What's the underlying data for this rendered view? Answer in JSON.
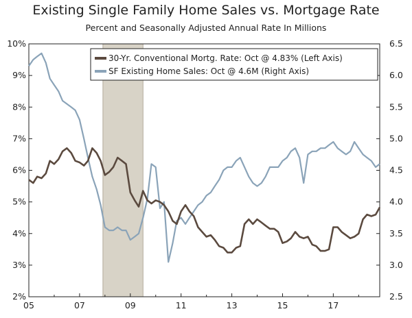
{
  "chart_data": {
    "type": "line",
    "title": "Existing Single Family Home Sales vs. Mortgage Rate",
    "subtitle": "Percent and Seasonally Adjusted Annual Rate In Millions",
    "x_labels": [
      "05",
      "07",
      "09",
      "11",
      "13",
      "15",
      "17"
    ],
    "x_label_years": [
      2005,
      2007,
      2009,
      2011,
      2013,
      2015,
      2017
    ],
    "xlim": [
      2005.0,
      2018.83
    ],
    "left_axis": {
      "ylim": [
        2,
        10
      ],
      "ticks": [
        2,
        3,
        4,
        5,
        6,
        7,
        8,
        9,
        10
      ],
      "tick_labels": [
        "2%",
        "3%",
        "4%",
        "5%",
        "6%",
        "7%",
        "8%",
        "9%",
        "10%"
      ]
    },
    "right_axis": {
      "ylim": [
        2.5,
        6.5
      ],
      "ticks": [
        2.5,
        3.0,
        3.5,
        4.0,
        4.5,
        5.0,
        5.5,
        6.0,
        6.5
      ],
      "tick_labels": [
        "2.5",
        "3.0",
        "3.5",
        "4.0",
        "4.5",
        "5.0",
        "5.5",
        "6.0",
        "6.5"
      ]
    },
    "recession": {
      "start": 2007.92,
      "end": 2009.5
    },
    "series": [
      {
        "name": "30-Yr. Conventional Mortg. Rate: Oct @ 4.83% (Left Axis)",
        "axis": "left",
        "color": "#5b4a3f",
        "points": [
          [
            2005.0,
            5.7
          ],
          [
            2005.17,
            5.6
          ],
          [
            2005.33,
            5.8
          ],
          [
            2005.5,
            5.75
          ],
          [
            2005.67,
            5.9
          ],
          [
            2005.83,
            6.3
          ],
          [
            2006.0,
            6.2
          ],
          [
            2006.17,
            6.35
          ],
          [
            2006.33,
            6.6
          ],
          [
            2006.5,
            6.7
          ],
          [
            2006.67,
            6.55
          ],
          [
            2006.83,
            6.3
          ],
          [
            2007.0,
            6.25
          ],
          [
            2007.17,
            6.15
          ],
          [
            2007.33,
            6.3
          ],
          [
            2007.5,
            6.7
          ],
          [
            2007.67,
            6.55
          ],
          [
            2007.83,
            6.3
          ],
          [
            2008.0,
            5.85
          ],
          [
            2008.17,
            5.95
          ],
          [
            2008.33,
            6.1
          ],
          [
            2008.5,
            6.4
          ],
          [
            2008.67,
            6.3
          ],
          [
            2008.83,
            6.2
          ],
          [
            2009.0,
            5.3
          ],
          [
            2009.17,
            5.05
          ],
          [
            2009.33,
            4.85
          ],
          [
            2009.5,
            5.35
          ],
          [
            2009.67,
            5.05
          ],
          [
            2009.83,
            4.95
          ],
          [
            2010.0,
            5.05
          ],
          [
            2010.17,
            5.0
          ],
          [
            2010.33,
            4.9
          ],
          [
            2010.5,
            4.7
          ],
          [
            2010.67,
            4.4
          ],
          [
            2010.83,
            4.3
          ],
          [
            2011.0,
            4.7
          ],
          [
            2011.17,
            4.9
          ],
          [
            2011.33,
            4.7
          ],
          [
            2011.5,
            4.55
          ],
          [
            2011.67,
            4.2
          ],
          [
            2011.83,
            4.05
          ],
          [
            2012.0,
            3.9
          ],
          [
            2012.17,
            3.95
          ],
          [
            2012.33,
            3.8
          ],
          [
            2012.5,
            3.6
          ],
          [
            2012.67,
            3.55
          ],
          [
            2012.83,
            3.4
          ],
          [
            2013.0,
            3.4
          ],
          [
            2013.17,
            3.55
          ],
          [
            2013.33,
            3.6
          ],
          [
            2013.5,
            4.3
          ],
          [
            2013.67,
            4.45
          ],
          [
            2013.83,
            4.3
          ],
          [
            2014.0,
            4.45
          ],
          [
            2014.17,
            4.35
          ],
          [
            2014.33,
            4.25
          ],
          [
            2014.5,
            4.15
          ],
          [
            2014.67,
            4.15
          ],
          [
            2014.83,
            4.05
          ],
          [
            2015.0,
            3.7
          ],
          [
            2015.17,
            3.75
          ],
          [
            2015.33,
            3.85
          ],
          [
            2015.5,
            4.05
          ],
          [
            2015.67,
            3.9
          ],
          [
            2015.83,
            3.85
          ],
          [
            2016.0,
            3.9
          ],
          [
            2016.17,
            3.65
          ],
          [
            2016.33,
            3.6
          ],
          [
            2016.5,
            3.45
          ],
          [
            2016.67,
            3.45
          ],
          [
            2016.83,
            3.5
          ],
          [
            2017.0,
            4.2
          ],
          [
            2017.17,
            4.2
          ],
          [
            2017.33,
            4.05
          ],
          [
            2017.5,
            3.95
          ],
          [
            2017.67,
            3.85
          ],
          [
            2017.83,
            3.9
          ],
          [
            2018.0,
            4.0
          ],
          [
            2018.17,
            4.45
          ],
          [
            2018.33,
            4.6
          ],
          [
            2018.5,
            4.55
          ],
          [
            2018.67,
            4.6
          ],
          [
            2018.83,
            4.83
          ]
        ]
      },
      {
        "name": "SF Existing Home Sales: Oct @ 4.6M (Right Axis)",
        "axis": "right",
        "color": "#8aa3b8",
        "points": [
          [
            2005.0,
            6.15
          ],
          [
            2005.17,
            6.25
          ],
          [
            2005.33,
            6.3
          ],
          [
            2005.5,
            6.35
          ],
          [
            2005.67,
            6.2
          ],
          [
            2005.83,
            5.95
          ],
          [
            2006.0,
            5.85
          ],
          [
            2006.17,
            5.75
          ],
          [
            2006.33,
            5.6
          ],
          [
            2006.5,
            5.55
          ],
          [
            2006.67,
            5.5
          ],
          [
            2006.83,
            5.45
          ],
          [
            2007.0,
            5.3
          ],
          [
            2007.17,
            5.0
          ],
          [
            2007.33,
            4.7
          ],
          [
            2007.5,
            4.4
          ],
          [
            2007.67,
            4.2
          ],
          [
            2007.83,
            3.95
          ],
          [
            2008.0,
            3.6
          ],
          [
            2008.17,
            3.55
          ],
          [
            2008.33,
            3.55
          ],
          [
            2008.5,
            3.6
          ],
          [
            2008.67,
            3.55
          ],
          [
            2008.83,
            3.55
          ],
          [
            2009.0,
            3.4
          ],
          [
            2009.17,
            3.45
          ],
          [
            2009.33,
            3.5
          ],
          [
            2009.5,
            3.75
          ],
          [
            2009.67,
            4.05
          ],
          [
            2009.83,
            4.6
          ],
          [
            2010.0,
            4.55
          ],
          [
            2010.17,
            3.9
          ],
          [
            2010.33,
            4.0
          ],
          [
            2010.5,
            3.05
          ],
          [
            2010.67,
            3.35
          ],
          [
            2010.83,
            3.7
          ],
          [
            2011.0,
            3.75
          ],
          [
            2011.17,
            3.65
          ],
          [
            2011.33,
            3.75
          ],
          [
            2011.5,
            3.85
          ],
          [
            2011.67,
            3.95
          ],
          [
            2011.83,
            4.0
          ],
          [
            2012.0,
            4.1
          ],
          [
            2012.17,
            4.15
          ],
          [
            2012.33,
            4.25
          ],
          [
            2012.5,
            4.35
          ],
          [
            2012.67,
            4.5
          ],
          [
            2012.83,
            4.55
          ],
          [
            2013.0,
            4.55
          ],
          [
            2013.17,
            4.65
          ],
          [
            2013.33,
            4.7
          ],
          [
            2013.5,
            4.55
          ],
          [
            2013.67,
            4.4
          ],
          [
            2013.83,
            4.3
          ],
          [
            2014.0,
            4.25
          ],
          [
            2014.17,
            4.3
          ],
          [
            2014.33,
            4.4
          ],
          [
            2014.5,
            4.55
          ],
          [
            2014.67,
            4.55
          ],
          [
            2014.83,
            4.55
          ],
          [
            2015.0,
            4.65
          ],
          [
            2015.17,
            4.7
          ],
          [
            2015.33,
            4.8
          ],
          [
            2015.5,
            4.85
          ],
          [
            2015.67,
            4.7
          ],
          [
            2015.83,
            4.3
          ],
          [
            2016.0,
            4.75
          ],
          [
            2016.17,
            4.8
          ],
          [
            2016.33,
            4.8
          ],
          [
            2016.5,
            4.85
          ],
          [
            2016.67,
            4.85
          ],
          [
            2016.83,
            4.9
          ],
          [
            2017.0,
            4.95
          ],
          [
            2017.17,
            4.85
          ],
          [
            2017.33,
            4.8
          ],
          [
            2017.5,
            4.75
          ],
          [
            2017.67,
            4.8
          ],
          [
            2017.83,
            4.95
          ],
          [
            2018.0,
            4.85
          ],
          [
            2018.17,
            4.75
          ],
          [
            2018.33,
            4.7
          ],
          [
            2018.5,
            4.65
          ],
          [
            2018.67,
            4.55
          ],
          [
            2018.83,
            4.6
          ]
        ]
      }
    ]
  }
}
